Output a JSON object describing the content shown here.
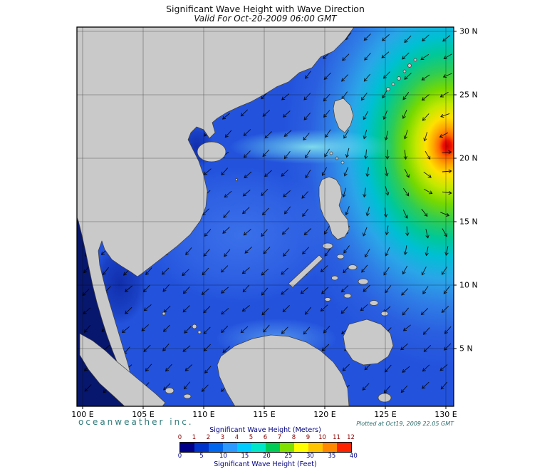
{
  "title": "Significant Wave Height with Wave Direction",
  "subtitle": "Valid For Oct-20-2009 06:00 GMT",
  "branding": "oceanweather inc.",
  "plotted_note": "Plotted at Oct19, 2009 22.05 GMT",
  "axes": {
    "lon_ticks": [
      "100 E",
      "105 E",
      "110 E",
      "115 E",
      "120 E",
      "125 E",
      "130 E"
    ],
    "lat_ticks": [
      "30 N",
      "25 N",
      "20 N",
      "15 N",
      "10 N",
      "5 N"
    ]
  },
  "legend": {
    "meters_title": "Significant Wave Height (Meters)",
    "meters_ticks": [
      "0",
      "1",
      "2",
      "3",
      "4",
      "5",
      "6",
      "7",
      "8",
      "9",
      "10",
      "11",
      "12"
    ],
    "feet_title": "Significant Wave Height (Feet)",
    "feet_ticks": [
      "0",
      "5",
      "10",
      "15",
      "20",
      "25",
      "30",
      "35",
      "40"
    ],
    "bar_colors": [
      "#000088",
      "#0033cc",
      "#0066ee",
      "#2b99ff",
      "#00ccff",
      "#00e6c8",
      "#00cc55",
      "#80e000",
      "#ffff00",
      "#ffc400",
      "#ff8800",
      "#ff2200"
    ]
  },
  "map_colors": {
    "land": "#c9c9c9",
    "coastline": "#3f3f3f",
    "ocean_base": "#2353dd",
    "arrows": "#000000",
    "grid": "#000000",
    "storm_stops": [
      [
        "0",
        "#cc0000"
      ],
      [
        "0.025",
        "#ee1100"
      ],
      [
        "0.05",
        "#ff6600"
      ],
      [
        "0.085",
        "#ffa500"
      ],
      [
        "0.13",
        "#ffe000"
      ],
      [
        "0.19",
        "#c4e800"
      ],
      [
        "0.26",
        "#76d900"
      ],
      [
        "0.34",
        "#2ecc55"
      ],
      [
        "0.42",
        "#00c898"
      ],
      [
        "0.5",
        "#00bfd4"
      ],
      [
        "0.6",
        "#2aa6e8"
      ],
      [
        "0.72",
        "#2f7de6"
      ],
      [
        "0.85",
        "#2a5ee0"
      ],
      [
        "1",
        "#2353dd"
      ]
    ]
  }
}
